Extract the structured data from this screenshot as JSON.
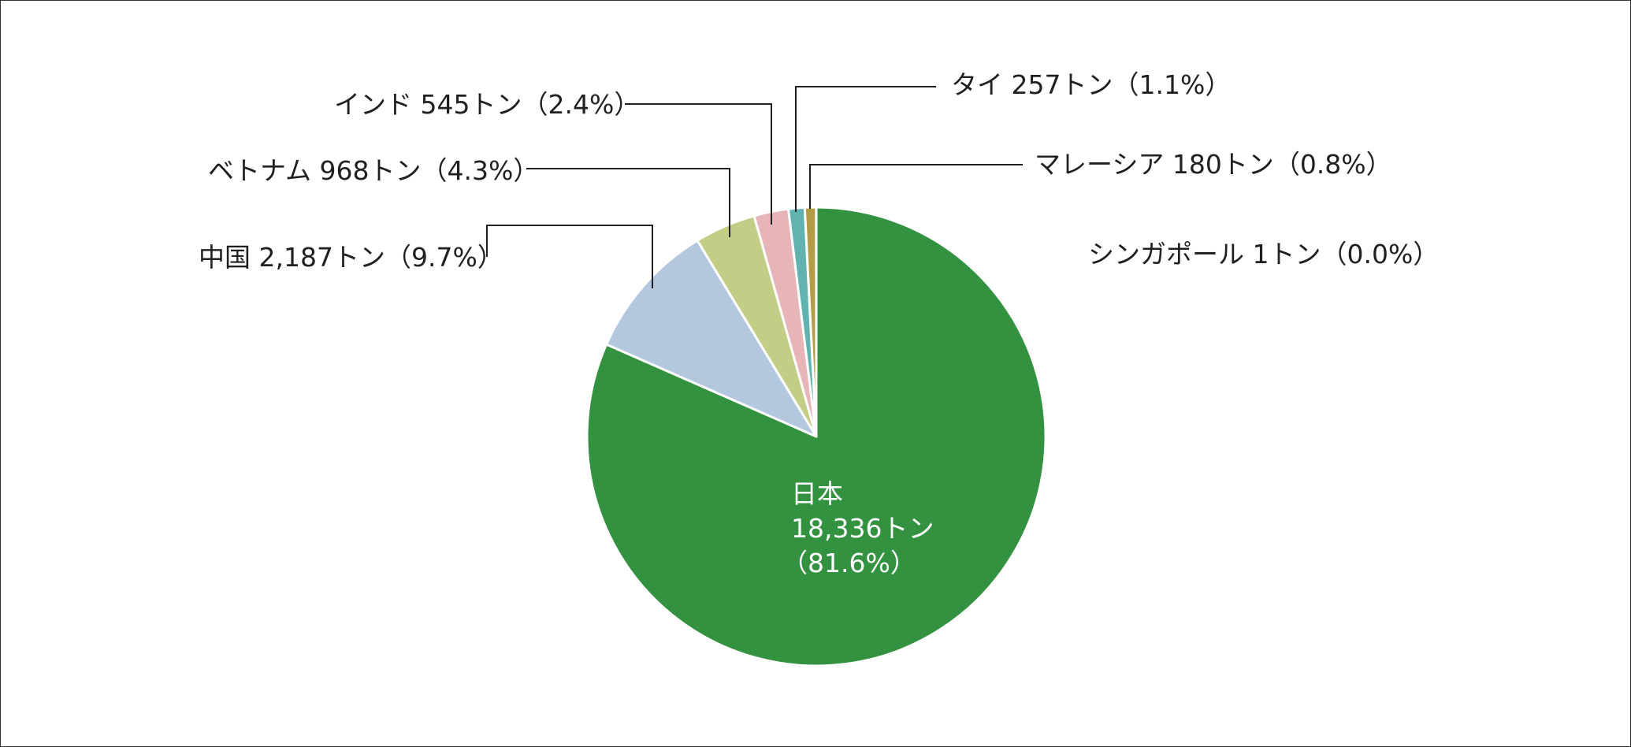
{
  "chart_data": {
    "type": "pie",
    "unit": "トン",
    "start_angle_deg": 0,
    "direction": "clockwise",
    "slices": [
      {
        "label": "日本",
        "value": 18336,
        "percent": 81.6,
        "color": "#339240",
        "line1": "日本",
        "line2": "18,336トン",
        "line3": "（81.6%）"
      },
      {
        "label": "中国",
        "value": 2187,
        "percent": 9.7,
        "color": "#b3c7df",
        "text": "中国 2,187トン（9.7%）"
      },
      {
        "label": "ベトナム",
        "value": 968,
        "percent": 4.3,
        "color": "#c3cd86",
        "text": "ベトナム 968トン（4.3%）"
      },
      {
        "label": "インド",
        "value": 545,
        "percent": 2.4,
        "color": "#e7b4b7",
        "text": "インド 545トン（2.4%）"
      },
      {
        "label": "タイ",
        "value": 257,
        "percent": 1.1,
        "color": "#62b2b0",
        "text": "タイ 257トン（1.1%）"
      },
      {
        "label": "マレーシア",
        "value": 180,
        "percent": 0.8,
        "color": "#b29c48",
        "text": "マレーシア 180トン（0.8%）"
      },
      {
        "label": "シンガポール",
        "value": 1,
        "percent": 0.0,
        "color": "#8a8a8a",
        "text": "シンガポール 1トン（0.0%）"
      }
    ]
  }
}
